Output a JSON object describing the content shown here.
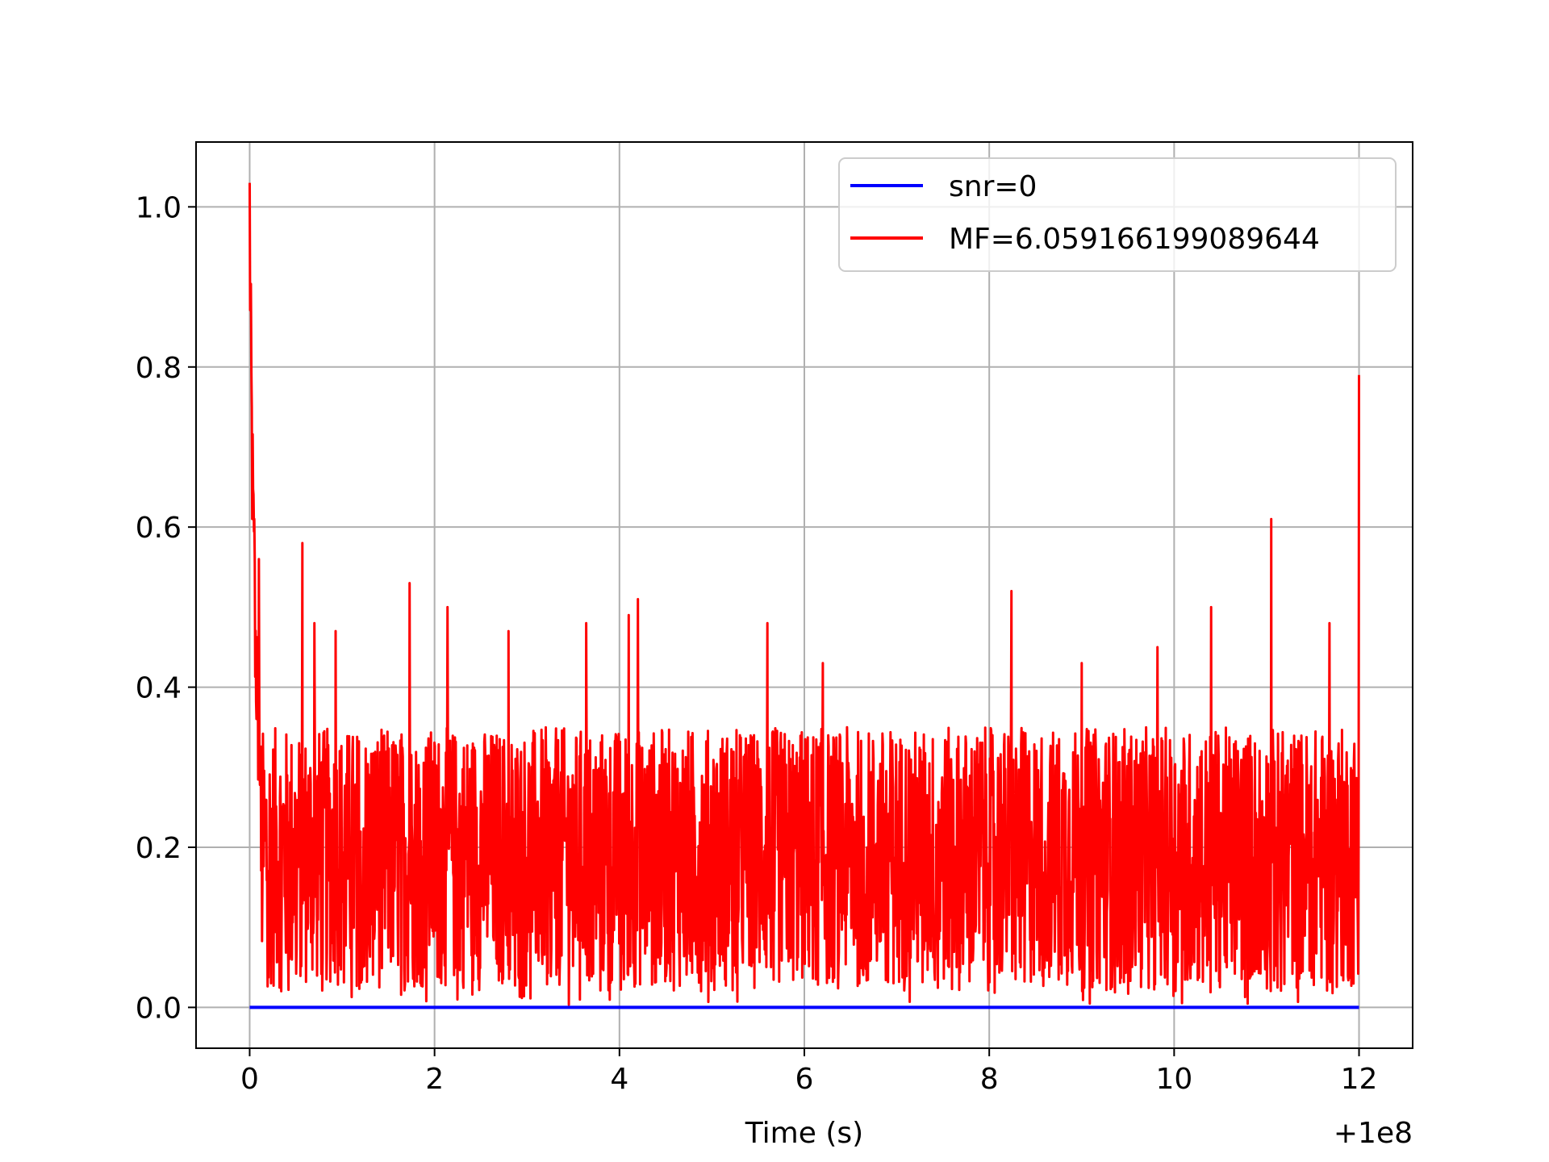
{
  "chart_data": {
    "type": "line",
    "title": "",
    "xlabel": "Time (s)",
    "ylabel": "",
    "x_offset_label": "+1e8",
    "xlim": [
      -0.58,
      12.58
    ],
    "ylim": [
      -0.051,
      1.081
    ],
    "xticks": [
      0,
      2,
      4,
      6,
      8,
      10,
      12
    ],
    "xtick_labels": [
      "0",
      "2",
      "4",
      "6",
      "8",
      "10",
      "12"
    ],
    "yticks": [
      0.0,
      0.2,
      0.4,
      0.6,
      0.8,
      1.0
    ],
    "ytick_labels": [
      "0.0",
      "0.2",
      "0.4",
      "0.6",
      "0.8",
      "1.0"
    ],
    "grid": true,
    "legend_position": "top-right",
    "x_range": [
      0,
      12
    ],
    "series": [
      {
        "name": "snr=0",
        "color": "#0000ff",
        "x": [
          0,
          12
        ],
        "y": [
          0.0,
          0.0
        ]
      },
      {
        "name": "MF=6.059166199089644",
        "color": "#ff0000",
        "envelope_min": 0.0,
        "envelope_typical": [
          0.02,
          0.35
        ],
        "peaks": [
          {
            "x": 0.0,
            "y": 1.03
          },
          {
            "x": 0.05,
            "y": 0.61
          },
          {
            "x": 0.1,
            "y": 0.56
          },
          {
            "x": 0.57,
            "y": 0.58
          },
          {
            "x": 0.7,
            "y": 0.48
          },
          {
            "x": 0.93,
            "y": 0.47
          },
          {
            "x": 1.73,
            "y": 0.53
          },
          {
            "x": 2.14,
            "y": 0.5
          },
          {
            "x": 2.8,
            "y": 0.47
          },
          {
            "x": 3.64,
            "y": 0.48
          },
          {
            "x": 4.1,
            "y": 0.49
          },
          {
            "x": 4.2,
            "y": 0.51
          },
          {
            "x": 5.6,
            "y": 0.48
          },
          {
            "x": 6.2,
            "y": 0.43
          },
          {
            "x": 8.24,
            "y": 0.52
          },
          {
            "x": 9.0,
            "y": 0.43
          },
          {
            "x": 9.82,
            "y": 0.45
          },
          {
            "x": 10.4,
            "y": 0.5
          },
          {
            "x": 11.05,
            "y": 0.61
          },
          {
            "x": 11.68,
            "y": 0.48
          },
          {
            "x": 12.0,
            "y": 0.79
          }
        ]
      }
    ]
  }
}
